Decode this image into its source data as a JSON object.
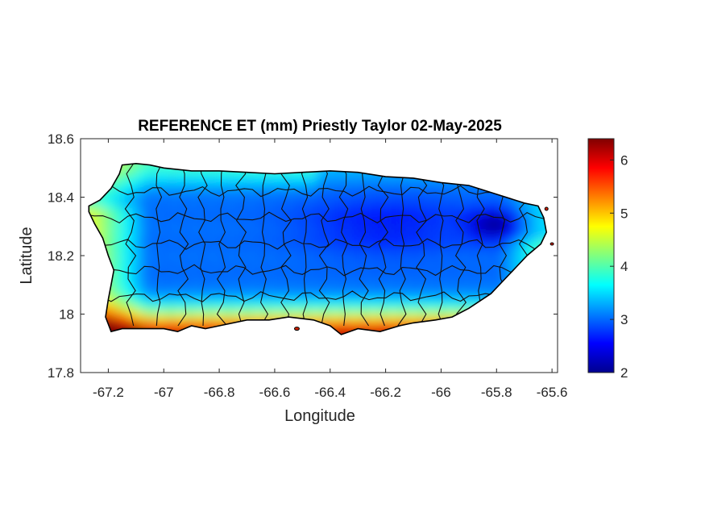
{
  "title": "REFERENCE ET (mm) Priestly Taylor 02-May-2025",
  "xlabel": "Longitude",
  "ylabel": "Latitude",
  "xticks": [
    "-67.2",
    "-67",
    "-66.8",
    "-66.6",
    "-66.4",
    "-66.2",
    "-66",
    "-65.8",
    "-65.6"
  ],
  "yticks": [
    "18.6",
    "18.4",
    "18.2",
    "18",
    "17.8"
  ],
  "colorbar_ticks": [
    "6",
    "5",
    "4",
    "3",
    "2"
  ],
  "colormap": "jet",
  "chart_data": {
    "type": "heatmap",
    "title": "REFERENCE ET (mm) Priestly Taylor 02-May-2025",
    "xlabel": "Longitude",
    "ylabel": "Latitude",
    "xlim": [
      -67.3,
      -65.58
    ],
    "ylim": [
      17.8,
      18.6
    ],
    "xticks": [
      -67.2,
      -67,
      -66.8,
      -66.6,
      -66.4,
      -66.2,
      -66,
      -65.8,
      -65.6
    ],
    "yticks": [
      17.8,
      18,
      18.2,
      18.4,
      18.6
    ],
    "colorbar": {
      "min": 2,
      "max": 6.4,
      "ticks": [
        2,
        3,
        4,
        5,
        6
      ],
      "colormap": "jet"
    },
    "region": "Puerto Rico (municipality boundaries overlaid)",
    "value_pattern": [
      {
        "area": "south coast",
        "value_range": [
          5.8,
          6.4
        ]
      },
      {
        "area": "west coast",
        "value_range": [
          4.5,
          5.6
        ]
      },
      {
        "area": "north coast",
        "value_range": [
          3.8,
          4.3
        ]
      },
      {
        "area": "central interior",
        "value_range": [
          2.8,
          3.4
        ]
      },
      {
        "area": "northeast (El Yunque)",
        "value_range": [
          2.0,
          2.6
        ]
      },
      {
        "area": "east coast",
        "value_range": [
          3.8,
          4.8
        ]
      }
    ]
  }
}
